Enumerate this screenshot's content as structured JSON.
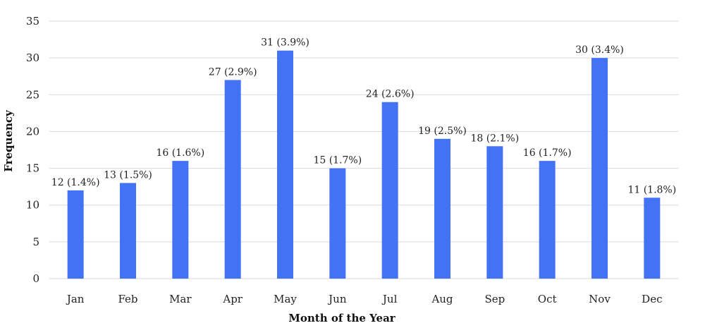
{
  "chart_data": {
    "type": "bar",
    "title": "",
    "xlabel": "Month of the Year",
    "ylabel": "Frequency",
    "ylim": [
      0,
      35
    ],
    "yticks": [
      0,
      5,
      10,
      15,
      20,
      25,
      30,
      35
    ],
    "grid": true,
    "legend": "none",
    "bar_color": "#4472F4",
    "categories": [
      "Jan",
      "Feb",
      "Mar",
      "Apr",
      "May",
      "Jun",
      "Jul",
      "Aug",
      "Sep",
      "Oct",
      "Nov",
      "Dec"
    ],
    "values": [
      12,
      13,
      16,
      27,
      31,
      15,
      24,
      19,
      18,
      16,
      30,
      11
    ],
    "data_labels": [
      "12 (1.4%)",
      "13 (1.5%)",
      "16 (1.6%)",
      "27 (2.9%)",
      "31 (3.9%)",
      "15 (1.7%)",
      "24 (2.6%)",
      "19 (2.5%)",
      "18 (2.1%)",
      "16 (1.7%)",
      "30 (3.4%)",
      "11 (1.8%)"
    ]
  }
}
